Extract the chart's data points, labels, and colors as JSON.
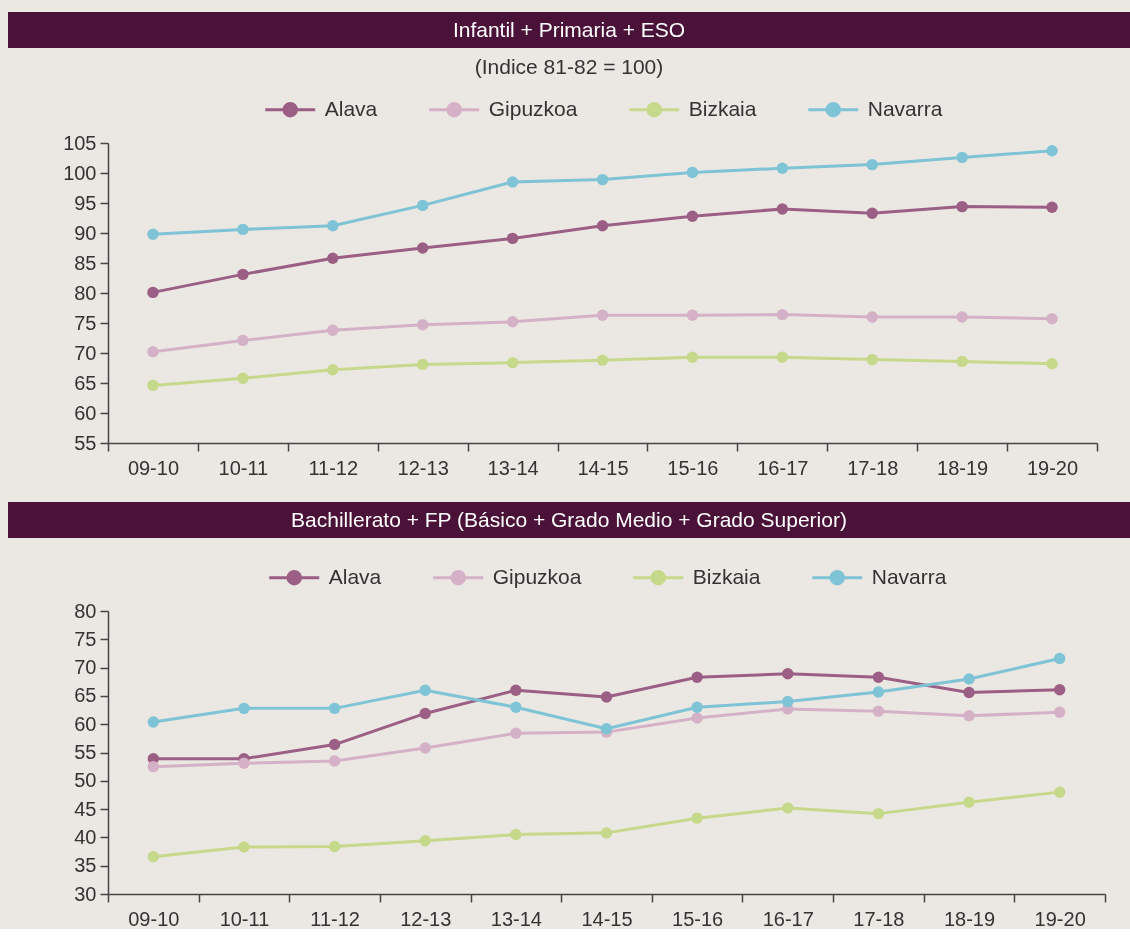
{
  "chart_data": [
    {
      "type": "line",
      "title": "Infantil + Primaria + ESO",
      "subtitle": "(Indice 81-82 = 100)",
      "categories": [
        "09-10",
        "10-11",
        "11-12",
        "12-13",
        "13-14",
        "14-15",
        "15-16",
        "16-17",
        "17-18",
        "18-19",
        "19-20"
      ],
      "series": [
        {
          "name": "Alava",
          "color": "#9b5e84",
          "values": [
            80.1,
            83.1,
            85.8,
            87.5,
            89.1,
            91.2,
            92.8,
            94.0,
            93.3,
            94.4,
            94.3
          ]
        },
        {
          "name": "Gipuzkoa",
          "color": "#d5b1c7",
          "values": [
            70.2,
            72.1,
            73.8,
            74.7,
            75.2,
            76.3,
            76.3,
            76.4,
            76.0,
            76.0,
            75.7
          ]
        },
        {
          "name": "Bizkaia",
          "color": "#c6d98b",
          "values": [
            64.6,
            65.8,
            67.2,
            68.1,
            68.4,
            68.8,
            69.3,
            69.3,
            68.9,
            68.6,
            68.2
          ]
        },
        {
          "name": "Navarra",
          "color": "#7ec3d6",
          "values": [
            89.8,
            90.6,
            91.2,
            94.6,
            98.5,
            98.9,
            100.1,
            100.8,
            101.4,
            102.6,
            103.7
          ]
        }
      ],
      "ylim": [
        55,
        105
      ],
      "yticks": [
        55,
        60,
        65,
        70,
        75,
        80,
        85,
        90,
        95,
        100,
        105
      ],
      "legend": "top",
      "marker": "circle",
      "line_style": "solid"
    },
    {
      "type": "line",
      "title": "Bachillerato + FP (Básico + Grado Medio + Grado Superior)",
      "categories": [
        "09-10",
        "10-11",
        "11-12",
        "12-13",
        "13-14",
        "14-15",
        "15-16",
        "16-17",
        "17-18",
        "18-19",
        "19-20"
      ],
      "series": [
        {
          "name": "Alava",
          "color": "#9b5e84",
          "values": [
            53.9,
            53.9,
            56.4,
            61.9,
            66.0,
            64.8,
            68.3,
            68.9,
            68.3,
            65.6,
            66.1
          ]
        },
        {
          "name": "Gipuzkoa",
          "color": "#d5b1c7",
          "values": [
            52.5,
            53.1,
            53.5,
            55.8,
            58.4,
            58.6,
            61.1,
            62.7,
            62.3,
            61.5,
            62.1
          ]
        },
        {
          "name": "Bizkaia",
          "color": "#c6d98b",
          "values": [
            36.6,
            38.3,
            38.4,
            39.4,
            40.5,
            40.8,
            43.4,
            45.2,
            44.2,
            46.2,
            48.0
          ]
        },
        {
          "name": "Navarra",
          "color": "#7ec3d6",
          "values": [
            60.4,
            62.8,
            62.8,
            66.0,
            63.0,
            59.2,
            63.0,
            64.0,
            65.7,
            68.0,
            71.6
          ]
        }
      ],
      "ylim": [
        30,
        80
      ],
      "yticks": [
        30,
        35,
        40,
        45,
        50,
        55,
        60,
        65,
        70,
        75,
        80
      ],
      "legend": "top",
      "marker": "circle",
      "line_style": "solid"
    }
  ]
}
